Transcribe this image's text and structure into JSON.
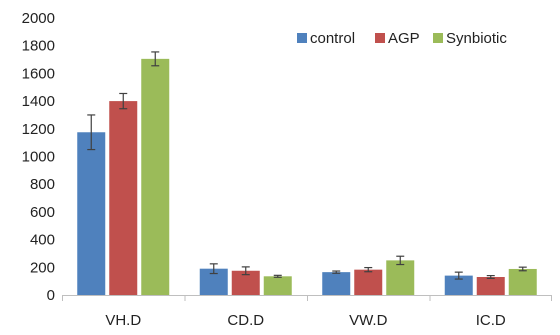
{
  "chart_data": {
    "type": "bar",
    "categories": [
      "VH.D",
      "CD.D",
      "VW.D",
      "IC.D"
    ],
    "series": [
      {
        "name": "control",
        "color": "#4f81bd",
        "values": [
          1175,
          190,
          165,
          140
        ],
        "errors": [
          125,
          35,
          8,
          25
        ]
      },
      {
        "name": "AGP",
        "color": "#c0504d",
        "values": [
          1400,
          175,
          183,
          130
        ],
        "errors": [
          55,
          28,
          15,
          10
        ]
      },
      {
        "name": "Synbiotic",
        "color": "#9bbb59",
        "values": [
          1705,
          135,
          250,
          188
        ],
        "errors": [
          50,
          7,
          30,
          13
        ]
      }
    ],
    "ylim": [
      0,
      2000
    ],
    "yticks": [
      0,
      200,
      400,
      600,
      800,
      1000,
      1200,
      1400,
      1600,
      1800,
      2000
    ],
    "title": "",
    "xlabel": "",
    "ylabel": "",
    "grid": false,
    "legend_position": "top-right",
    "error_bar_color": "#404040"
  }
}
